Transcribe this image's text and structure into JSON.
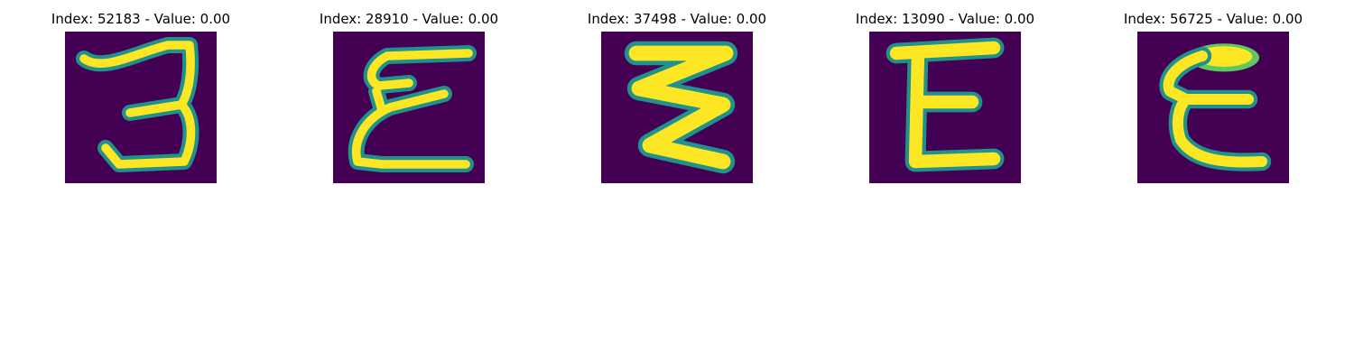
{
  "figure": {
    "background": "#ffffff",
    "colormap": [
      "#440154",
      "#3b528b",
      "#21918c",
      "#5ec962",
      "#fde725"
    ],
    "panels": [
      {
        "title": "Index: 52183 - Value: 0.00",
        "glyph": "3"
      },
      {
        "title": "Index: 28910 - Value: 0.00",
        "glyph": "epsilon"
      },
      {
        "title": "Index: 37498 - Value: 0.00",
        "glyph": "zigzag-3"
      },
      {
        "title": "Index: 13090 - Value: 0.00",
        "glyph": "E"
      },
      {
        "title": "Index: 56725 - Value: 0.00",
        "glyph": "epsilon-heavy"
      }
    ]
  }
}
